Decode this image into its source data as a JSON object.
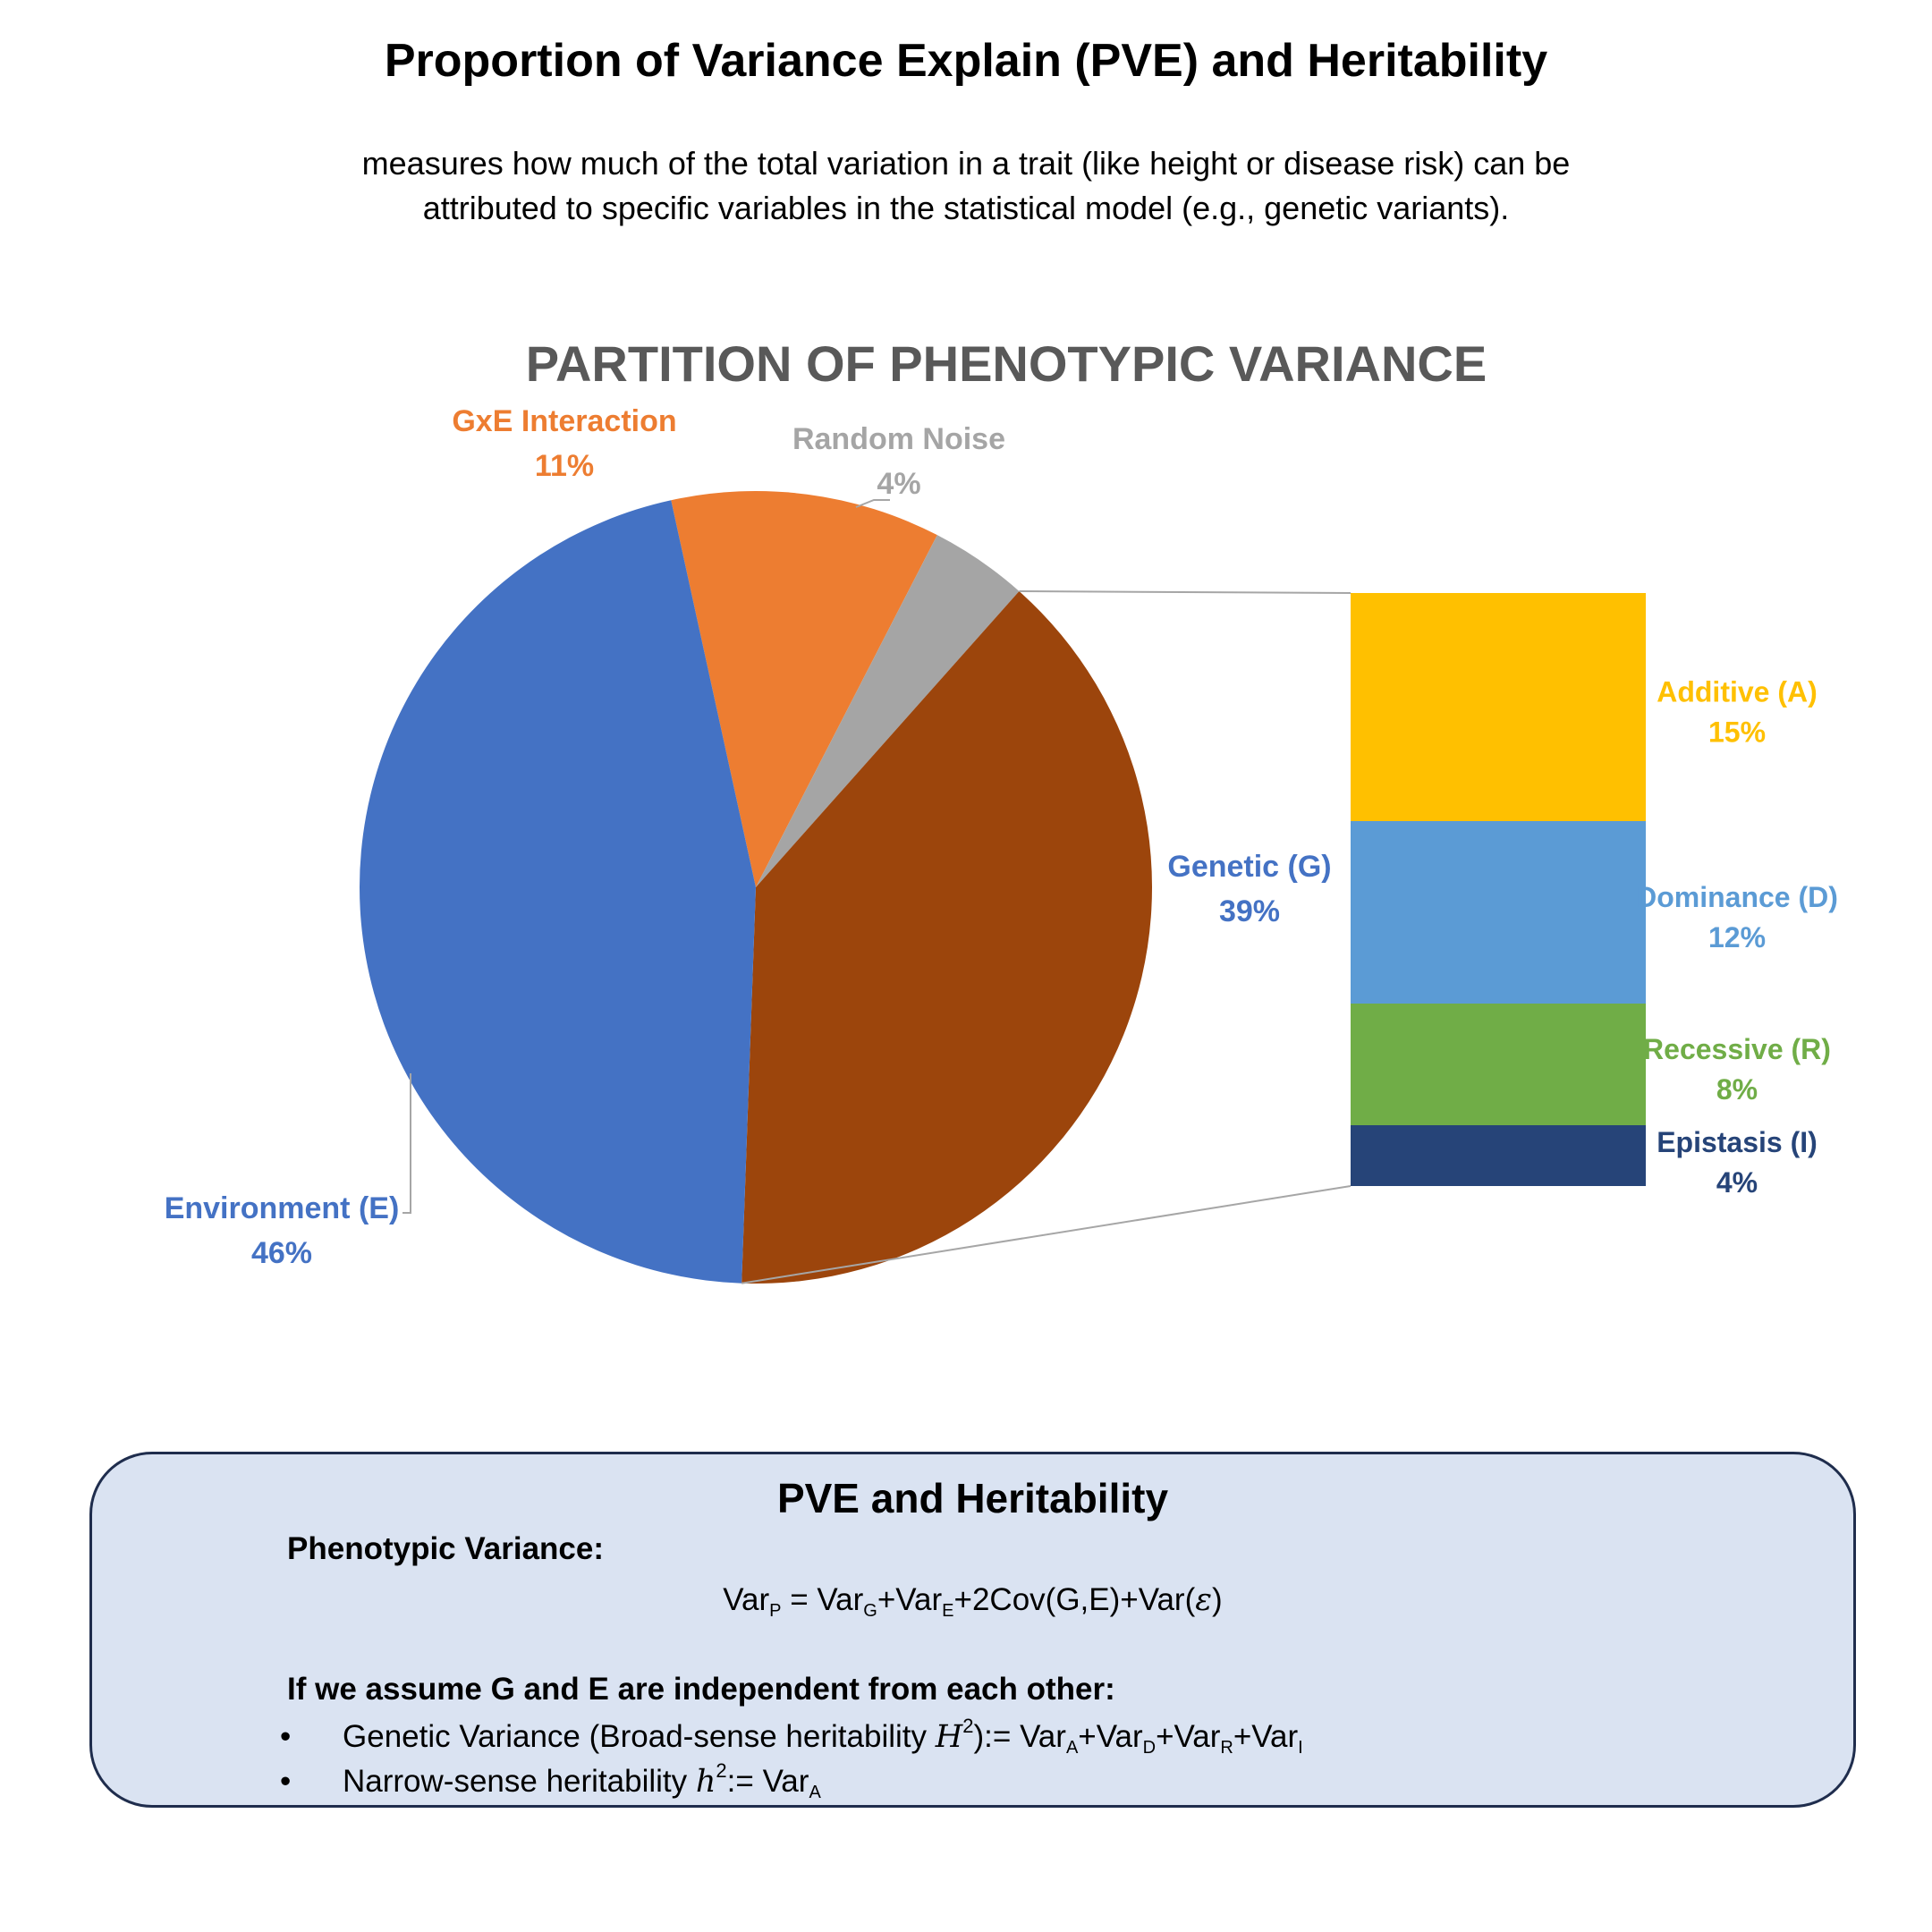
{
  "header": {
    "title": "Proportion of Variance Explain (PVE) and Heritability",
    "subtitle_line1": "measures how much of the total variation in a trait (like height or disease risk) can be",
    "subtitle_line2": "attributed to specific variables in the statistical model (e.g., genetic variants)."
  },
  "chart_data": {
    "type": "bar-of-pie",
    "title": "PARTITION OF PHENOTYPIC VARIANCE",
    "pie": [
      {
        "name": "GxE Interaction",
        "value": 11,
        "label": "11%",
        "color": "#ed7d31"
      },
      {
        "name": "Random Noise",
        "value": 4,
        "label": "4%",
        "color": "#a5a5a5"
      },
      {
        "name": "Genetic (G)",
        "value": 39,
        "label": "39%",
        "color": "#9c450c",
        "label_color": "#4472c4"
      },
      {
        "name": "Environment (E)",
        "value": 46,
        "label": "46%",
        "color": "#4472c4"
      }
    ],
    "bar": [
      {
        "name": "Additive (A)",
        "value": 15,
        "label": "15%",
        "color": "#ffc000"
      },
      {
        "name": "Dominance (D)",
        "value": 12,
        "label": "12%",
        "color": "#5b9bd5"
      },
      {
        "name": "Recessive (R)",
        "value": 8,
        "label": "8%",
        "color": "#70ad47"
      },
      {
        "name": "Epistasis (I)",
        "value": 4,
        "label": "4%",
        "color": "#264478"
      }
    ]
  },
  "pve_box": {
    "title": "PVE and Heritability",
    "phenotypic_heading": "Phenotypic Variance:",
    "assume_heading": "If we assume G and E are independent from each other:",
    "bullet_mark": "•",
    "var": "Var",
    "sub_p": "P",
    "sub_g": "G",
    "sub_e": "E",
    "sub_a": "A",
    "sub_d": "D",
    "sub_r": "R",
    "sub_i": "I",
    "eq": " = ",
    "plus": "+",
    "cov_term": "+2Cov(G,E)+Var(",
    "epsilon": "ε",
    "close_paren": ")",
    "bullet1_prefix": "Genetic Variance (Broad-sense heritability ",
    "bullet1_sym": "H",
    "sup2": "2",
    "bullet1_mid": "):= ",
    "bullet2_prefix": "Narrow-sense heritability ",
    "bullet2_sym": "h",
    "bullet2_mid": ":= "
  }
}
